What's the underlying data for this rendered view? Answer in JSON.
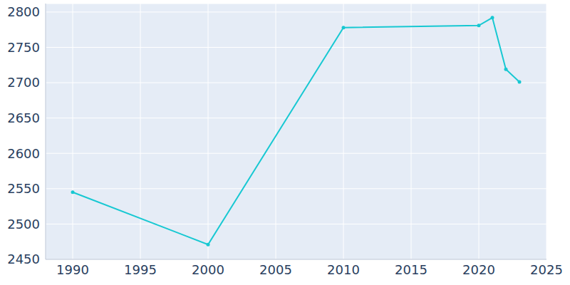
{
  "chart_data": {
    "type": "line",
    "x": [
      1990,
      2000,
      2010,
      2020,
      2021,
      2022,
      2023
    ],
    "values": [
      2545,
      2471,
      2778,
      2781,
      2792,
      2719,
      2701
    ],
    "color": "#17c8d2",
    "marker": "circle",
    "xlim": [
      1988,
      2025
    ],
    "xticks": [
      1990,
      1995,
      2000,
      2005,
      2010,
      2015,
      2020,
      2025
    ],
    "ylim": [
      2450,
      2812
    ],
    "yticks": [
      2450,
      2500,
      2550,
      2600,
      2650,
      2700,
      2750,
      2800
    ],
    "grid": true
  }
}
